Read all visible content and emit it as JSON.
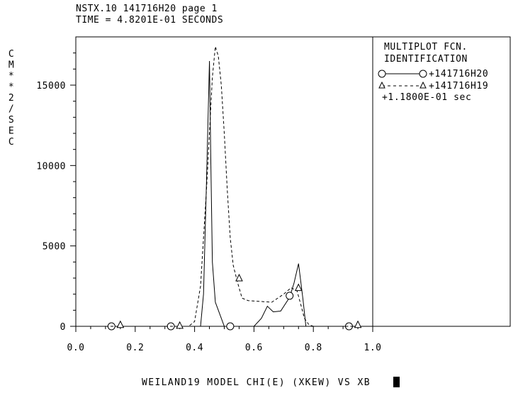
{
  "header": {
    "line1": "NSTX.10 141716H20 page 1",
    "line2": "TIME = 4.8201E-01 SECONDS"
  },
  "legend": {
    "title1": "MULTIPLOT FCN.",
    "title2": "IDENTIFICATION",
    "entries": [
      {
        "label": "+141716H20",
        "style": "solid",
        "marker": "circle"
      },
      {
        "label": "+141716H19",
        "style": "dashed",
        "marker": "triangle"
      },
      {
        "label": "+1.1800E-01 sec",
        "style": "none",
        "marker": "none"
      }
    ]
  },
  "chart_data": {
    "type": "line",
    "ylabel": "CM**2/SEC",
    "xlabel": "WEILAND19 MODEL CHI(E) (XKEW) VS XB",
    "xlim": [
      0.0,
      1.0
    ],
    "ylim": [
      0,
      18000
    ],
    "xticks": [
      0.0,
      0.2,
      0.4,
      0.6,
      0.8,
      1.0
    ],
    "xtick_labels": [
      "0.0",
      "0.2",
      "0.4",
      "0.6",
      "0.8",
      "1.0"
    ],
    "yticks": [
      0,
      5000,
      10000,
      15000
    ],
    "ytick_labels": [
      "0",
      "5000",
      "10000",
      "15000"
    ],
    "grid": false,
    "legend_position": "right",
    "series": [
      {
        "name": "+141716H20",
        "style": "solid",
        "marker": "circle",
        "x": [
          0.0,
          0.42,
          0.43,
          0.44,
          0.45,
          0.455,
          0.46,
          0.47,
          0.48,
          0.5,
          0.52,
          0.6,
          0.625,
          0.645,
          0.665,
          0.69,
          0.72,
          0.735,
          0.75,
          0.765,
          0.775,
          1.0
        ],
        "y": [
          0,
          0,
          2000,
          9000,
          16500,
          10000,
          4000,
          1500,
          1000,
          0,
          0,
          0,
          500,
          1250,
          900,
          950,
          1800,
          2700,
          3900,
          1700,
          0,
          0
        ],
        "marker_x": [
          0.12,
          0.32,
          0.52,
          0.72,
          0.92
        ],
        "marker_y": [
          0,
          0,
          0,
          1900,
          0
        ]
      },
      {
        "name": "+141716H19",
        "style": "dashed",
        "marker": "triangle",
        "x": [
          0.0,
          0.38,
          0.4,
          0.42,
          0.44,
          0.46,
          0.47,
          0.48,
          0.49,
          0.5,
          0.51,
          0.52,
          0.53,
          0.545,
          0.56,
          0.58,
          0.62,
          0.66,
          0.7,
          0.725,
          0.745,
          0.76,
          0.77,
          0.785,
          0.8,
          1.0
        ],
        "y": [
          0,
          0,
          300,
          2500,
          8500,
          15500,
          17400,
          16800,
          15000,
          12000,
          8500,
          5500,
          3800,
          2700,
          1750,
          1600,
          1550,
          1500,
          2000,
          2400,
          2200,
          1200,
          500,
          100,
          0,
          0
        ],
        "marker_x": [
          0.15,
          0.35,
          0.55,
          0.75,
          0.95
        ],
        "marker_y": [
          100,
          50,
          3000,
          2400,
          100
        ]
      }
    ]
  },
  "status": {
    "cursor": "text-cursor"
  }
}
